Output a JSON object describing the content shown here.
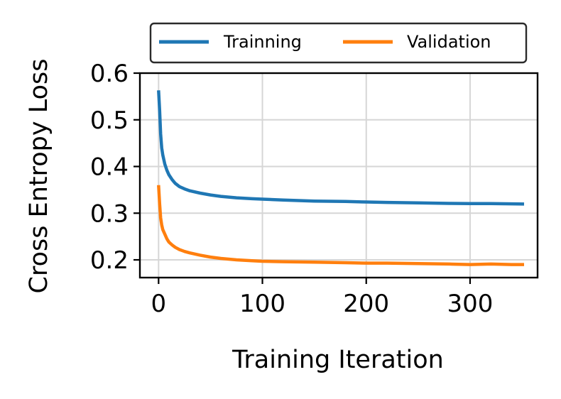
{
  "chart_data": {
    "type": "line",
    "title": "",
    "xlabel": "Training Iteration",
    "ylabel": "Cross Entropy Loss",
    "xlim": [
      -18,
      365
    ],
    "ylim": [
      0.162,
      0.6
    ],
    "xticks": [
      0,
      100,
      200,
      300
    ],
    "yticks": [
      0.2,
      0.3,
      0.4,
      0.5,
      0.6
    ],
    "xtick_labels": [
      "0",
      "100",
      "200",
      "300"
    ],
    "ytick_labels": [
      "0.2",
      "0.3",
      "0.4",
      "0.5",
      "0.6"
    ],
    "grid": true,
    "legend_position": "top, outside, above plot",
    "series": [
      {
        "name": "Trainning",
        "color": "#1f77b4",
        "x": [
          0,
          1,
          2,
          3,
          4,
          6,
          8,
          10,
          13,
          16,
          20,
          25,
          30,
          40,
          50,
          60,
          75,
          90,
          100,
          120,
          150,
          180,
          200,
          220,
          250,
          280,
          300,
          320,
          340,
          352
        ],
        "y": [
          0.563,
          0.52,
          0.47,
          0.44,
          0.425,
          0.405,
          0.392,
          0.382,
          0.372,
          0.364,
          0.357,
          0.352,
          0.348,
          0.343,
          0.339,
          0.336,
          0.333,
          0.331,
          0.33,
          0.328,
          0.326,
          0.325,
          0.324,
          0.323,
          0.322,
          0.321,
          0.3205,
          0.3205,
          0.32,
          0.3195
        ]
      },
      {
        "name": "Validation",
        "color": "#ff7f0e",
        "x": [
          0,
          1,
          2,
          3,
          4,
          6,
          8,
          10,
          13,
          16,
          20,
          25,
          30,
          40,
          50,
          60,
          75,
          90,
          100,
          120,
          150,
          180,
          200,
          220,
          250,
          280,
          300,
          320,
          340,
          352
        ],
        "y": [
          0.36,
          0.32,
          0.29,
          0.275,
          0.265,
          0.255,
          0.245,
          0.238,
          0.232,
          0.227,
          0.222,
          0.218,
          0.215,
          0.21,
          0.206,
          0.203,
          0.2,
          0.198,
          0.197,
          0.196,
          0.195,
          0.194,
          0.193,
          0.193,
          0.192,
          0.191,
          0.19,
          0.191,
          0.19,
          0.19
        ]
      }
    ]
  }
}
